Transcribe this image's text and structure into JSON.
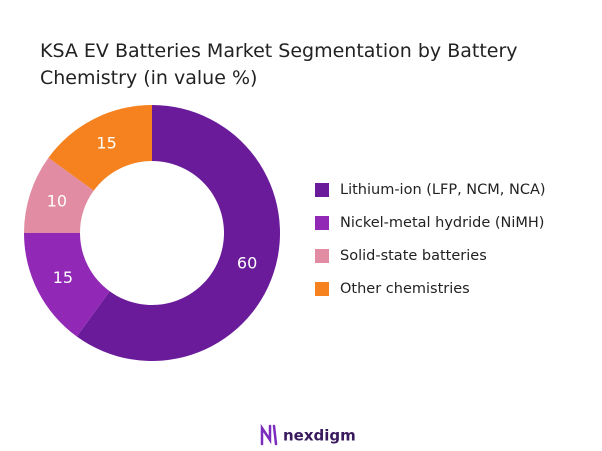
{
  "chart_data": {
    "type": "donut",
    "title": "KSA EV Batteries Market Segmentation by Battery Chemistry (in value %)",
    "categories": [
      "Lithium-ion (LFP, NCM, NCA)",
      "Nickel-metal hydride (NiMH)",
      "Solid-state batteries",
      "Other chemistries"
    ],
    "values": [
      60,
      15,
      10,
      15
    ],
    "colors": [
      "#6a1b9a",
      "#9229b6",
      "#e28ca3",
      "#f5821f"
    ],
    "legend": "right"
  },
  "brand": "nexdigm"
}
